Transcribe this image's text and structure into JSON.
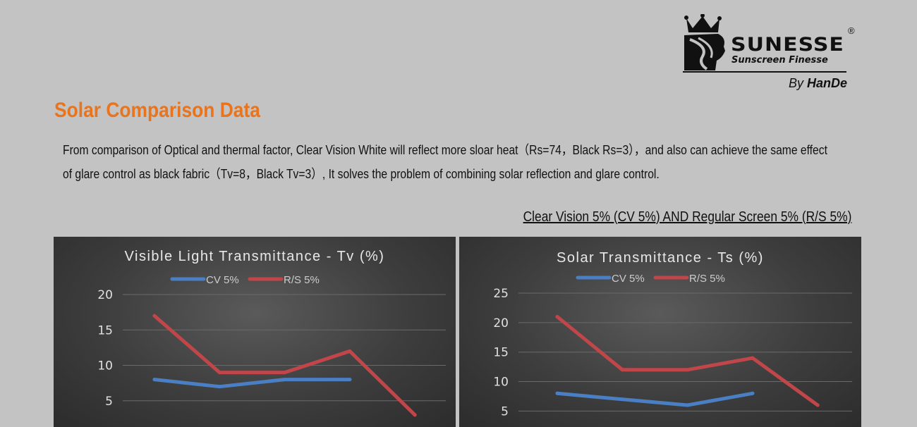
{
  "logo": {
    "brand": "SUNESSE",
    "registered": "®",
    "tagline": "Sunscreen Finesse",
    "by": "By",
    "maker": "HanDe"
  },
  "heading": "Solar Comparison Data",
  "paragraph": {
    "line1": "From comparison of Optical and thermal factor, Clear Vision White will reflect more sloar heat（Rs=74，Black Rs=3），and also can achieve the same effect",
    "line2": "of glare control as black fabric（Tv=8，Black Tv=3）, It solves the problem of combining solar reflection and glare control."
  },
  "comparison_title": "Clear Vision 5% (CV 5%) AND Regular Screen 5% (R/S 5%)",
  "colors": {
    "cv": "#4a7fc4",
    "rs": "#c0464a",
    "heading": "#e8741e"
  },
  "chart_data": [
    {
      "type": "line",
      "title": "Visible Light Transmittance - Tv (%)",
      "legend_position": "top",
      "grid": true,
      "ylim": [
        0,
        20
      ],
      "yticks": [
        "5",
        "10",
        "15",
        "20"
      ],
      "series": [
        {
          "name": "CV 5%",
          "values": [
            8,
            7,
            8,
            8,
            null
          ]
        },
        {
          "name": "R/S 5%",
          "values": [
            17,
            9,
            9,
            12,
            3
          ]
        }
      ]
    },
    {
      "type": "line",
      "title": "Solar Transmittance - Ts (%)",
      "legend_position": "top",
      "grid": true,
      "ylim": [
        0,
        25
      ],
      "yticks": [
        "5",
        "10",
        "15",
        "20",
        "25"
      ],
      "series": [
        {
          "name": "CV 5%",
          "values": [
            8,
            7,
            6,
            8,
            null
          ]
        },
        {
          "name": "R/S 5%",
          "values": [
            21,
            12,
            12,
            14,
            6
          ]
        }
      ]
    }
  ]
}
